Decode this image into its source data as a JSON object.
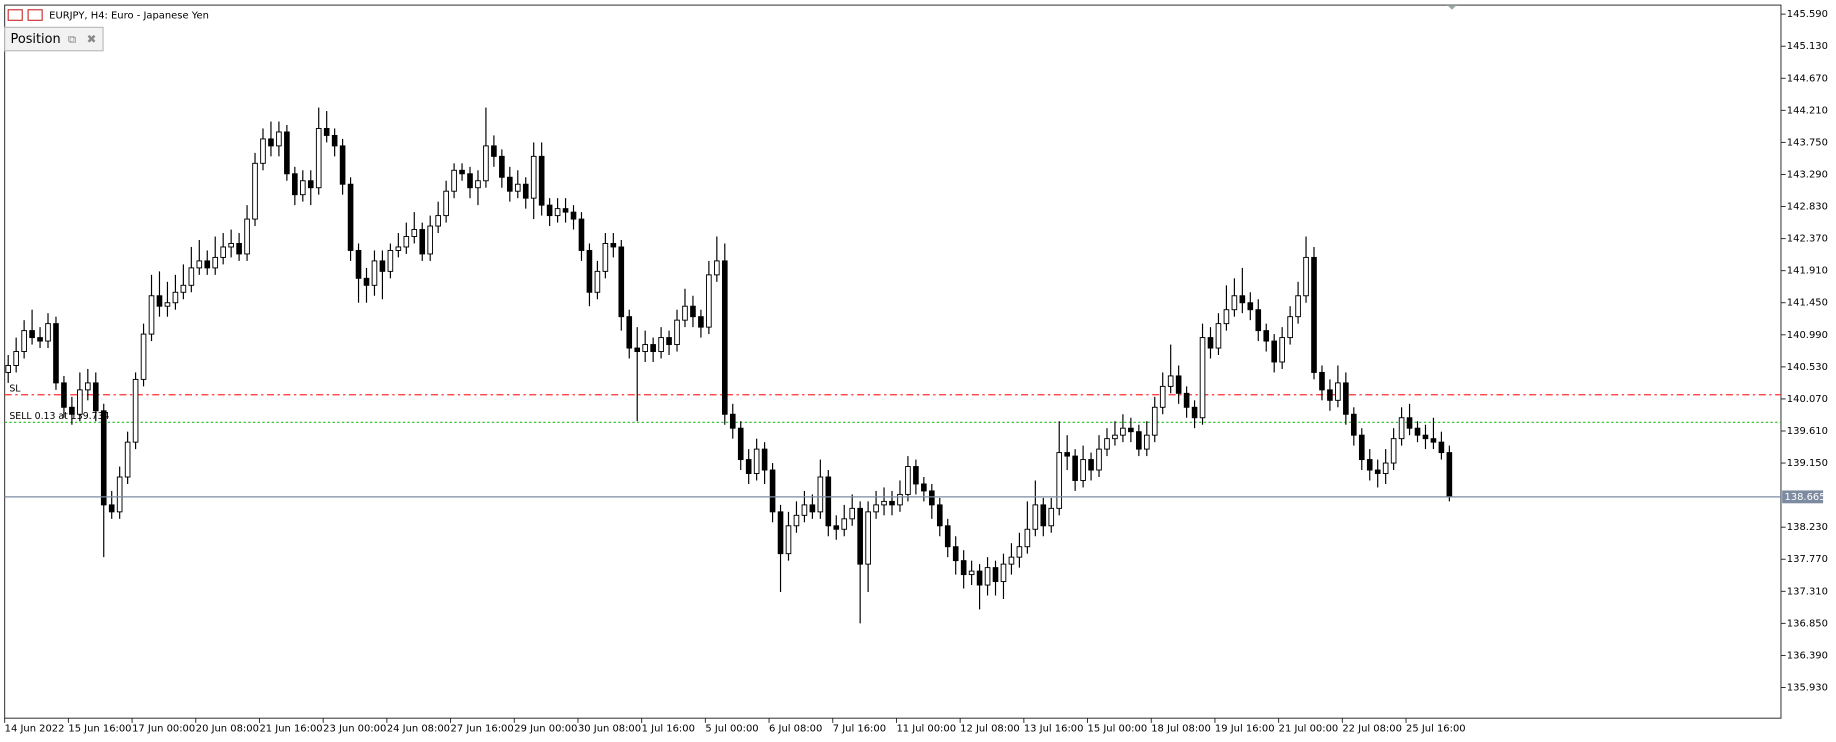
{
  "chart_data": {
    "type": "candlestick",
    "title": "EURJPY, H4:  Euro - Japanese Yen",
    "panel_title": "Position",
    "up_color": "#ffffff",
    "down_color": "#000000",
    "ylim": [
      135.49,
      145.72
    ],
    "yticks": [
      {
        "value": 145.59,
        "label": "145.590"
      },
      {
        "value": 145.13,
        "label": "145.130"
      },
      {
        "value": 144.67,
        "label": "144.670"
      },
      {
        "value": 144.21,
        "label": "144.210"
      },
      {
        "value": 143.75,
        "label": "143.750"
      },
      {
        "value": 143.29,
        "label": "143.290"
      },
      {
        "value": 142.83,
        "label": "142.830"
      },
      {
        "value": 142.37,
        "label": "142.370"
      },
      {
        "value": 141.91,
        "label": "141.910"
      },
      {
        "value": 141.45,
        "label": "141.450"
      },
      {
        "value": 140.99,
        "label": "140.990"
      },
      {
        "value": 140.53,
        "label": "140.530"
      },
      {
        "value": 140.07,
        "label": "140.070"
      },
      {
        "value": 139.61,
        "label": "139.610"
      },
      {
        "value": 139.15,
        "label": "139.150"
      },
      {
        "value": 138.23,
        "label": "138.230"
      },
      {
        "value": 137.77,
        "label": "137.770"
      },
      {
        "value": 137.31,
        "label": "137.310"
      },
      {
        "value": 136.85,
        "label": "136.850"
      },
      {
        "value": 136.39,
        "label": "136.390"
      },
      {
        "value": 135.93,
        "label": "135.930"
      }
    ],
    "xticks": [
      {
        "value": 0,
        "label": "14 Jun 2022"
      },
      {
        "value": 8,
        "label": "15 Jun 16:00"
      },
      {
        "value": 16,
        "label": "17 Jun 00:00"
      },
      {
        "value": 24,
        "label": "20 Jun 08:00"
      },
      {
        "value": 32,
        "label": "21 Jun 16:00"
      },
      {
        "value": 40,
        "label": "23 Jun 00:00"
      },
      {
        "value": 48,
        "label": "24 Jun 08:00"
      },
      {
        "value": 56,
        "label": "27 Jun 16:00"
      },
      {
        "value": 64,
        "label": "29 Jun 00:00"
      },
      {
        "value": 72,
        "label": "30 Jun 08:00"
      },
      {
        "value": 80,
        "label": "1 Jul 16:00"
      },
      {
        "value": 88,
        "label": "5 Jul 00:00"
      },
      {
        "value": 96,
        "label": "6 Jul 08:00"
      },
      {
        "value": 104,
        "label": "7 Jul 16:00"
      },
      {
        "value": 112,
        "label": "11 Jul 00:00"
      },
      {
        "value": 120,
        "label": "12 Jul 08:00"
      },
      {
        "value": 128,
        "label": "13 Jul 16:00"
      },
      {
        "value": 136,
        "label": "15 Jul 00:00"
      },
      {
        "value": 144,
        "label": "18 Jul 08:00"
      },
      {
        "value": 152,
        "label": "19 Jul 16:00"
      },
      {
        "value": 160,
        "label": "21 Jul 00:00"
      },
      {
        "value": 168,
        "label": "22 Jul 08:00"
      },
      {
        "value": 176,
        "label": "25 Jul 16:00"
      }
    ],
    "levels": [
      {
        "label": "SL",
        "value": 140.13,
        "color": "#ff3030",
        "dash": "6 3 2 3"
      },
      {
        "label": "SELL 0.13 at 139.734",
        "value": 139.734,
        "color": "#22bb22",
        "dash": "2 2"
      }
    ],
    "bid": 138.665,
    "bid_color": "#7d8ba0",
    "open": [
      140.45,
      140.55,
      140.75,
      141.05,
      140.95,
      140.9,
      141.15,
      140.3,
      139.95,
      139.85,
      140.2,
      140.3,
      139.9,
      138.55,
      138.45,
      138.95,
      139.45,
      140.35,
      141.0,
      141.55,
      141.4,
      141.45,
      141.6,
      141.7,
      141.95,
      142.05,
      141.95,
      142.1,
      142.25,
      142.3,
      142.15,
      142.65,
      143.45,
      143.8,
      143.7,
      143.9,
      143.3,
      143.0,
      143.2,
      143.1,
      143.95,
      143.85,
      143.7,
      143.15,
      142.2,
      141.8,
      141.7,
      142.05,
      141.9,
      142.2,
      142.25,
      142.4,
      142.5,
      142.15,
      142.55,
      142.7,
      143.05,
      143.35,
      143.3,
      143.1,
      143.2,
      143.7,
      143.55,
      143.25,
      143.05,
      143.15,
      142.95,
      143.55,
      142.85,
      142.7,
      142.8,
      142.75,
      142.65,
      142.2,
      141.6,
      141.9,
      142.3,
      142.25,
      141.25,
      140.8,
      140.75,
      140.85,
      140.75,
      140.95,
      140.85,
      141.2,
      141.4,
      141.25,
      141.1,
      141.85,
      142.05,
      139.85,
      139.65,
      139.2,
      139.0,
      139.35,
      139.05,
      138.45,
      137.85,
      138.25,
      138.4,
      138.55,
      138.45,
      138.95,
      138.25,
      138.2,
      138.35,
      138.5,
      137.7,
      138.45,
      138.55,
      138.6,
      138.55,
      138.7,
      139.1,
      138.85,
      138.75,
      138.55,
      138.25,
      137.95,
      137.75,
      137.55,
      137.6,
      137.4,
      137.65,
      137.45,
      137.7,
      137.8,
      137.95,
      138.2,
      138.55,
      138.25,
      138.5,
      139.3,
      139.25,
      138.9,
      139.2,
      139.05,
      139.35,
      139.5,
      139.55,
      139.65,
      139.6,
      139.35,
      139.55,
      139.95,
      140.25,
      140.4,
      140.15,
      139.95,
      139.8,
      140.95,
      140.8,
      141.15,
      141.35,
      141.55,
      141.45,
      141.35,
      141.05,
      140.9,
      140.6,
      140.95,
      141.25,
      141.55,
      142.1,
      140.45,
      140.2,
      140.05,
      140.3,
      139.85,
      139.55,
      139.2,
      139.05,
      139.0,
      139.15,
      139.5,
      139.8,
      139.65,
      139.55,
      139.5,
      139.45,
      139.3
    ],
    "high": [
      140.7,
      140.95,
      141.2,
      141.35,
      141.1,
      141.3,
      141.25,
      140.4,
      140.1,
      140.45,
      140.5,
      140.45,
      140.0,
      138.75,
      139.1,
      139.6,
      140.45,
      141.15,
      141.85,
      141.9,
      141.75,
      141.85,
      142.0,
      142.25,
      142.35,
      142.2,
      142.4,
      142.45,
      142.5,
      142.45,
      142.85,
      143.6,
      143.95,
      144.05,
      144.05,
      144.0,
      143.4,
      143.35,
      143.35,
      144.25,
      144.2,
      143.95,
      143.8,
      143.25,
      142.3,
      141.95,
      142.2,
      142.2,
      142.3,
      142.45,
      142.6,
      142.75,
      142.6,
      142.7,
      142.9,
      143.2,
      143.45,
      143.45,
      143.4,
      143.35,
      144.25,
      143.85,
      143.65,
      143.4,
      143.35,
      143.25,
      143.75,
      143.75,
      142.95,
      142.95,
      142.95,
      142.85,
      142.75,
      142.3,
      142.05,
      142.45,
      142.45,
      142.35,
      141.35,
      141.1,
      141.05,
      140.95,
      141.1,
      141.05,
      141.35,
      141.65,
      141.55,
      141.35,
      142.05,
      142.4,
      142.3,
      140.0,
      139.75,
      139.35,
      139.5,
      139.45,
      139.15,
      138.55,
      138.45,
      138.6,
      138.75,
      138.7,
      139.2,
      139.05,
      138.4,
      138.55,
      138.7,
      138.6,
      138.6,
      138.75,
      138.8,
      138.75,
      138.9,
      139.25,
      139.2,
      138.95,
      138.85,
      138.65,
      138.35,
      138.1,
      137.9,
      137.75,
      137.7,
      137.8,
      137.75,
      137.85,
      138.0,
      138.15,
      138.6,
      138.9,
      138.65,
      138.65,
      139.75,
      139.55,
      139.35,
      139.4,
      139.3,
      139.55,
      139.65,
      139.75,
      139.85,
      139.8,
      139.7,
      139.75,
      140.1,
      140.45,
      140.85,
      140.55,
      140.25,
      140.05,
      141.15,
      141.1,
      141.3,
      141.7,
      141.8,
      141.95,
      141.6,
      141.5,
      141.15,
      141.0,
      141.1,
      141.4,
      141.75,
      142.4,
      142.25,
      140.55,
      140.35,
      140.55,
      140.45,
      139.95,
      139.65,
      139.35,
      139.2,
      139.35,
      139.65,
      139.95,
      140.0,
      139.75,
      139.7,
      139.8,
      139.6,
      139.4
    ],
    "low": [
      140.3,
      140.45,
      140.65,
      140.85,
      140.8,
      140.8,
      140.2,
      139.8,
      139.7,
      139.75,
      140.05,
      139.75,
      137.8,
      138.35,
      138.35,
      138.85,
      139.35,
      140.25,
      140.9,
      141.25,
      141.25,
      141.35,
      141.5,
      141.6,
      141.85,
      141.85,
      141.85,
      142.0,
      142.1,
      142.05,
      142.05,
      142.55,
      143.35,
      143.55,
      143.55,
      143.2,
      142.85,
      142.9,
      142.85,
      143.0,
      143.75,
      143.55,
      143.0,
      142.05,
      141.45,
      141.45,
      141.55,
      141.5,
      141.8,
      142.1,
      142.15,
      142.3,
      142.05,
      142.05,
      142.45,
      142.6,
      142.95,
      143.2,
      142.95,
      142.85,
      143.1,
      143.4,
      143.1,
      142.9,
      142.95,
      142.8,
      142.65,
      142.7,
      142.55,
      142.6,
      142.6,
      142.5,
      142.05,
      141.4,
      141.5,
      141.8,
      142.1,
      141.05,
      140.65,
      139.75,
      140.6,
      140.6,
      140.65,
      140.7,
      140.75,
      141.1,
      141.1,
      140.95,
      141.0,
      141.75,
      139.7,
      139.5,
      139.05,
      138.85,
      138.9,
      138.85,
      138.3,
      137.3,
      137.75,
      138.15,
      138.3,
      138.35,
      138.35,
      138.1,
      138.05,
      138.1,
      138.25,
      136.85,
      137.3,
      138.35,
      138.4,
      138.4,
      138.45,
      138.6,
      138.7,
      138.6,
      138.35,
      138.1,
      137.8,
      137.55,
      137.35,
      137.4,
      137.05,
      137.25,
      137.25,
      137.2,
      137.55,
      137.65,
      137.85,
      138.1,
      138.1,
      138.15,
      138.4,
      139.05,
      138.75,
      138.8,
      138.9,
      138.95,
      139.25,
      139.4,
      139.45,
      139.45,
      139.25,
      139.25,
      139.45,
      139.85,
      140.15,
      140.0,
      139.8,
      139.65,
      139.7,
      140.65,
      140.7,
      141.05,
      141.25,
      141.3,
      141.2,
      140.9,
      140.75,
      140.45,
      140.5,
      140.85,
      141.15,
      141.45,
      140.35,
      140.05,
      139.9,
      139.95,
      139.7,
      139.4,
      139.05,
      138.9,
      138.8,
      138.85,
      139.05,
      139.4,
      139.55,
      139.45,
      139.35,
      139.35,
      139.2,
      138.6
    ],
    "close": [
      140.55,
      140.75,
      141.05,
      140.95,
      140.9,
      141.15,
      140.3,
      139.95,
      139.85,
      140.2,
      140.3,
      139.9,
      138.55,
      138.45,
      138.95,
      139.45,
      140.35,
      141.0,
      141.55,
      141.4,
      141.45,
      141.6,
      141.7,
      141.95,
      142.05,
      141.95,
      142.1,
      142.25,
      142.3,
      142.15,
      142.65,
      143.45,
      143.8,
      143.7,
      143.9,
      143.3,
      143.0,
      143.2,
      143.1,
      143.95,
      143.85,
      143.7,
      143.15,
      142.2,
      141.8,
      141.7,
      142.05,
      141.9,
      142.2,
      142.25,
      142.4,
      142.5,
      142.15,
      142.55,
      142.7,
      143.05,
      143.35,
      143.3,
      143.1,
      143.2,
      143.7,
      143.55,
      143.25,
      143.05,
      143.15,
      142.95,
      143.55,
      142.85,
      142.7,
      142.8,
      142.75,
      142.65,
      142.2,
      141.6,
      141.9,
      142.3,
      142.25,
      141.25,
      140.8,
      140.75,
      140.85,
      140.75,
      140.95,
      140.85,
      141.2,
      141.4,
      141.25,
      141.1,
      141.85,
      142.05,
      139.85,
      139.65,
      139.2,
      139.0,
      139.35,
      139.05,
      138.45,
      137.85,
      138.25,
      138.4,
      138.55,
      138.45,
      138.95,
      138.25,
      138.2,
      138.35,
      138.5,
      137.7,
      138.45,
      138.55,
      138.6,
      138.55,
      138.7,
      139.1,
      138.85,
      138.75,
      138.55,
      138.25,
      137.95,
      137.75,
      137.55,
      137.6,
      137.4,
      137.65,
      137.45,
      137.7,
      137.8,
      137.95,
      138.2,
      138.55,
      138.25,
      138.5,
      139.3,
      139.25,
      138.9,
      139.2,
      139.05,
      139.35,
      139.5,
      139.55,
      139.65,
      139.6,
      139.35,
      139.55,
      139.95,
      140.25,
      140.4,
      140.15,
      139.95,
      139.8,
      140.95,
      140.8,
      141.15,
      141.35,
      141.55,
      141.45,
      141.35,
      141.05,
      140.9,
      140.6,
      140.95,
      141.25,
      141.55,
      142.1,
      140.45,
      140.2,
      140.05,
      140.3,
      139.85,
      139.55,
      139.2,
      139.05,
      139.0,
      139.15,
      139.5,
      139.8,
      139.65,
      139.55,
      139.5,
      139.45,
      139.3,
      138.665
    ]
  }
}
